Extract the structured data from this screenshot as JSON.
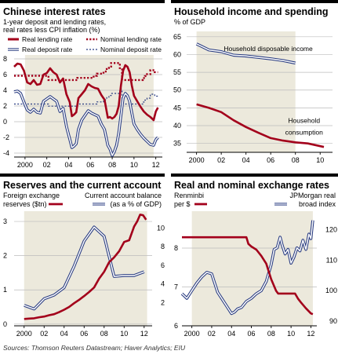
{
  "colors": {
    "red": "#a3001b",
    "blue": "#273a80",
    "grid": "#bcbcbc",
    "shade": "#ece9dc",
    "topbar": "#000000"
  },
  "source_text": "Sources: Thomson Reuters Datastream; Haver Analytics; EIU",
  "chart_data": [
    {
      "id": "interest",
      "type": "line",
      "title": "Chinese interest rates",
      "subtitle": "1-year deposit and lending rates,",
      "subtitle2": "real rates less CPI inflation (%)",
      "legend": [
        {
          "name": "Real lending rate",
          "color": "#a3001b",
          "style": "solid"
        },
        {
          "name": "Nominal lending rate",
          "color": "#a3001b",
          "style": "dotted"
        },
        {
          "name": "Real deposit rate",
          "color": "#273a80",
          "style": "outline"
        },
        {
          "name": "Nominal deposit rate",
          "color": "#273a80",
          "style": "dotted-circle"
        }
      ],
      "ylim": [
        -4.5,
        8.5
      ],
      "yticks": [
        "8",
        "6",
        "4",
        "2",
        "0",
        "-2",
        "-4"
      ],
      "ytick_values": [
        8,
        6,
        4,
        2,
        0,
        -2,
        -4
      ],
      "xlim": [
        1999.0,
        2012.6
      ],
      "xticks": [
        "2000",
        "02",
        "04",
        "06",
        "08",
        "10",
        "12"
      ],
      "xtick_values": [
        2000,
        2002,
        2004,
        2006,
        2008,
        2010,
        2012
      ],
      "shade_x": [
        2000.0,
        2011.8
      ],
      "series": [
        {
          "name": "Nominal lending rate",
          "style": "dotted",
          "color": "#a3001b",
          "x": [
            1999.0,
            2002.15,
            2002.15,
            2004.8,
            2004.8,
            2006.3,
            2006.3,
            2006.6,
            2006.6,
            2007.2,
            2007.2,
            2007.5,
            2007.5,
            2007.7,
            2007.7,
            2007.9,
            2007.9,
            2008.7,
            2008.7,
            2008.9,
            2008.9,
            2010.8,
            2010.8,
            2011.0,
            2011.0,
            2011.2,
            2011.2,
            2011.5,
            2011.5,
            2011.9,
            2011.9,
            2012.2
          ],
          "y": [
            5.85,
            5.85,
            5.31,
            5.31,
            5.58,
            5.58,
            5.85,
            5.85,
            6.12,
            6.12,
            6.39,
            6.39,
            6.84,
            6.84,
            7.02,
            7.02,
            7.47,
            7.47,
            6.66,
            6.66,
            5.31,
            5.31,
            5.56,
            5.56,
            5.81,
            5.81,
            6.06,
            6.06,
            6.56,
            6.56,
            6.31,
            6.31
          ]
        },
        {
          "name": "Nominal deposit rate",
          "style": "dotted-circle",
          "color": "#273a80",
          "x": [
            1999.0,
            2002.15,
            2002.15,
            2004.8,
            2004.8,
            2006.6,
            2006.6,
            2007.2,
            2007.2,
            2007.5,
            2007.5,
            2007.7,
            2007.7,
            2007.9,
            2007.9,
            2008.7,
            2008.7,
            2008.9,
            2008.9,
            2010.8,
            2010.8,
            2011.0,
            2011.0,
            2011.2,
            2011.2,
            2011.5,
            2011.5,
            2011.9,
            2011.9,
            2012.2
          ],
          "y": [
            2.25,
            2.25,
            1.98,
            1.98,
            2.25,
            2.25,
            2.52,
            2.52,
            2.79,
            2.79,
            3.06,
            3.06,
            3.33,
            3.33,
            3.6,
            3.6,
            4.14,
            4.14,
            2.25,
            2.25,
            2.5,
            2.5,
            2.75,
            2.75,
            3.0,
            3.0,
            3.5,
            3.5,
            3.25,
            3.25
          ]
        },
        {
          "name": "Real lending rate",
          "style": "solid",
          "color": "#a3001b",
          "x": [
            1999.0,
            1999.3,
            1999.6,
            1999.9,
            2000.2,
            2000.5,
            2000.8,
            2001.1,
            2001.4,
            2001.7,
            2002.0,
            2002.3,
            2002.6,
            2002.9,
            2003.2,
            2003.5,
            2003.8,
            2004.1,
            2004.3,
            2004.5,
            2004.7,
            2004.9,
            2005.2,
            2005.5,
            2005.8,
            2006.1,
            2006.4,
            2006.7,
            2007.0,
            2007.3,
            2007.6,
            2007.8,
            2008.0,
            2008.2,
            2008.4,
            2008.6,
            2008.8,
            2009.0,
            2009.2,
            2009.4,
            2009.6,
            2009.8,
            2010.0,
            2010.3,
            2010.6,
            2010.9,
            2011.2,
            2011.5,
            2011.8,
            2012.0,
            2012.2
          ],
          "y": [
            7.0,
            7.4,
            7.3,
            6.5,
            5.0,
            4.8,
            5.3,
            4.7,
            4.8,
            6.0,
            6.2,
            6.8,
            6.3,
            6.0,
            5.0,
            5.5,
            3.5,
            2.5,
            0.7,
            0.9,
            1.2,
            3.0,
            3.5,
            4.0,
            4.8,
            4.5,
            4.3,
            4.2,
            3.4,
            2.8,
            0.5,
            0.6,
            0.4,
            0.6,
            1.0,
            2.0,
            4.6,
            6.5,
            7.2,
            7.0,
            6.3,
            4.6,
            3.3,
            2.6,
            1.9,
            1.3,
            0.9,
            0.6,
            0.2,
            1.3,
            1.8
          ]
        },
        {
          "name": "Real deposit rate",
          "style": "outline",
          "color": "#273a80",
          "x": [
            1999.0,
            1999.3,
            1999.6,
            1999.9,
            2000.2,
            2000.5,
            2000.8,
            2001.1,
            2001.4,
            2001.7,
            2002.0,
            2002.3,
            2002.6,
            2002.9,
            2003.2,
            2003.5,
            2003.8,
            2004.1,
            2004.3,
            2004.5,
            2004.7,
            2004.9,
            2005.2,
            2005.5,
            2005.8,
            2006.1,
            2006.4,
            2006.7,
            2007.0,
            2007.3,
            2007.6,
            2007.8,
            2008.0,
            2008.2,
            2008.4,
            2008.6,
            2008.8,
            2009.0,
            2009.2,
            2009.4,
            2009.6,
            2009.8,
            2010.0,
            2010.3,
            2010.6,
            2010.9,
            2011.2,
            2011.5,
            2011.8,
            2012.0,
            2012.2
          ],
          "y": [
            3.8,
            3.9,
            3.6,
            2.5,
            1.5,
            1.2,
            1.6,
            1.2,
            1.1,
            2.6,
            2.9,
            3.2,
            2.9,
            2.6,
            1.3,
            1.7,
            -0.6,
            -2.2,
            -3.3,
            -3.1,
            -2.8,
            -1.0,
            0.2,
            0.8,
            1.4,
            1.1,
            0.9,
            0.7,
            -0.3,
            -1.0,
            -3.0,
            -3.5,
            -4.3,
            -3.8,
            -3.0,
            -1.5,
            0.8,
            3.0,
            3.6,
            3.3,
            2.6,
            1.1,
            -0.3,
            -1.0,
            -1.6,
            -2.1,
            -2.5,
            -2.9,
            -3.0,
            -2.3,
            -2.0
          ]
        }
      ]
    },
    {
      "id": "household",
      "type": "line",
      "title": "Household income and spending",
      "subtitle": "% of GDP",
      "ylim": [
        32.5,
        66.5
      ],
      "yticks": [
        "65",
        "60",
        "55",
        "50",
        "45",
        "40",
        "35"
      ],
      "ytick_values": [
        65,
        60,
        55,
        50,
        45,
        40,
        35
      ],
      "xlim": [
        1999.2,
        2011.0
      ],
      "xticks": [
        "2000",
        "02",
        "04",
        "06",
        "08",
        "10"
      ],
      "xtick_values": [
        2000,
        2002,
        2004,
        2006,
        2008,
        2010
      ],
      "shade_x": [
        2000.0,
        2008.0
      ],
      "series": [
        {
          "name": "Household disposable income",
          "style": "outline",
          "color": "#273a80",
          "x": [
            2000,
            2001,
            2002,
            2003,
            2004,
            2005,
            2006,
            2007,
            2008
          ],
          "y": [
            63.0,
            61.3,
            60.8,
            59.8,
            59.6,
            59.2,
            58.8,
            58.3,
            57.6
          ]
        },
        {
          "name": "Household consumption",
          "style": "solid",
          "color": "#a3001b",
          "x": [
            2000,
            2001,
            2002,
            2003,
            2004,
            2005,
            2006,
            2007,
            2008,
            2009,
            2010.3
          ],
          "y": [
            46.0,
            45.0,
            43.8,
            41.5,
            39.6,
            38.0,
            36.5,
            35.8,
            35.3,
            35.0,
            34.0
          ]
        }
      ],
      "annotations": [
        {
          "text": "Household disposable income",
          "x": 2005.8,
          "y": 61.0
        },
        {
          "text": "Household",
          "x": 2008.7,
          "y": 40.8
        },
        {
          "text": "consumption",
          "x": 2008.7,
          "y": 37.5
        }
      ]
    },
    {
      "id": "reserves",
      "type": "line",
      "title": "Reserves and the current account",
      "left_label_1": "Foreign exchange",
      "left_label_2": "reserves ($tn)",
      "right_label_1": "Current account balance",
      "right_label_2": "(as a % of GDP)",
      "ylim_left": [
        -0.05,
        3.3
      ],
      "ylim_right": [
        -0.5,
        11.8
      ],
      "yticks_left": [
        "3",
        "2",
        "1",
        "0"
      ],
      "ytick_values_left": [
        3,
        2,
        1,
        0
      ],
      "yticks_right": [
        "10",
        "8",
        "6",
        "4",
        "2"
      ],
      "ytick_values_right": [
        10,
        8,
        6,
        4,
        2
      ],
      "xlim": [
        1999.0,
        2012.8
      ],
      "xticks": [
        "2000",
        "02",
        "04",
        "06",
        "08",
        "10",
        "12"
      ],
      "xtick_values": [
        2000,
        2002,
        2004,
        2006,
        2008,
        2010,
        2012
      ],
      "shade_x": [
        2000.0,
        2012.3
      ],
      "series": [
        {
          "name": "Current account balance",
          "style": "outline",
          "color": "#273a80",
          "x": [
            2000,
            2001,
            2002,
            2003,
            2004,
            2005,
            2006,
            2007,
            2008,
            2009,
            2010,
            2011,
            2012
          ],
          "y": [
            1.7,
            1.3,
            2.4,
            2.8,
            3.6,
            5.9,
            8.6,
            10.1,
            9.1,
            4.8,
            4.9,
            4.9,
            5.3
          ]
        },
        {
          "name": "Foreign exchange reserves",
          "style": "solid",
          "color": "#a3001b",
          "x": [
            2000.0,
            2000.5,
            2001.0,
            2001.5,
            2002.0,
            2002.5,
            2003.0,
            2003.5,
            2004.0,
            2004.5,
            2005.0,
            2005.5,
            2006.0,
            2006.5,
            2007.0,
            2007.5,
            2008.0,
            2008.5,
            2009.0,
            2009.5,
            2010.0,
            2010.5,
            2011.0,
            2011.3,
            2011.6,
            2011.9,
            2012.2
          ],
          "y": [
            0.15,
            0.16,
            0.17,
            0.2,
            0.22,
            0.26,
            0.29,
            0.35,
            0.42,
            0.5,
            0.61,
            0.71,
            0.82,
            0.94,
            1.07,
            1.33,
            1.53,
            1.81,
            1.95,
            2.13,
            2.4,
            2.45,
            2.85,
            3.0,
            3.2,
            3.18,
            3.05
          ]
        }
      ]
    },
    {
      "id": "exchange",
      "type": "line",
      "title": "Real and nominal exchange rates",
      "left_label_1": "Renminbi",
      "left_label_2": "per $",
      "right_label_1": "JPMorgan real",
      "right_label_2": "broad index",
      "ylim_left": [
        6.0,
        8.95
      ],
      "ylim_right": [
        88.5,
        126.0
      ],
      "yticks_left": [
        "6",
        "7",
        "8"
      ],
      "ytick_values_left": [
        6,
        7,
        8
      ],
      "yticks_right": [
        "120",
        "110",
        "100",
        "90"
      ],
      "ytick_values_right": [
        120,
        110,
        100,
        90
      ],
      "xlim": [
        1999.0,
        2012.6
      ],
      "xticks": [
        "2000",
        "02",
        "04",
        "06",
        "08",
        "10",
        "12"
      ],
      "xtick_values": [
        2000,
        2002,
        2004,
        2006,
        2008,
        2010,
        2012
      ],
      "shade_x": [
        2000.0,
        2012.2
      ],
      "series": [
        {
          "name": "JPMorgan real broad index",
          "style": "outline",
          "color": "#273a80",
          "x": [
            1999.0,
            1999.5,
            2000.0,
            2000.5,
            2001.0,
            2001.5,
            2002.0,
            2002.3,
            2002.6,
            2003.0,
            2003.5,
            2004.0,
            2004.3,
            2004.6,
            2005.0,
            2005.5,
            2006.0,
            2006.5,
            2007.0,
            2007.5,
            2008.0,
            2008.3,
            2008.6,
            2008.9,
            2009.1,
            2009.4,
            2009.7,
            2010.0,
            2010.3,
            2010.6,
            2010.9,
            2011.2,
            2011.5,
            2011.8,
            2012.0,
            2012.2
          ],
          "y": [
            99.0,
            97.5,
            100.0,
            102.5,
            104.5,
            106.0,
            105.5,
            102.5,
            99.5,
            97.5,
            95.0,
            92.5,
            93.0,
            94.0,
            94.5,
            96.5,
            97.5,
            99.0,
            100.0,
            103.0,
            108.5,
            113.5,
            114.0,
            117.5,
            115.0,
            112.0,
            113.5,
            109.0,
            111.0,
            114.0,
            113.0,
            116.5,
            113.5,
            118.5,
            117.0,
            123.0
          ]
        },
        {
          "name": "Renminbi per $",
          "style": "solid",
          "color": "#a3001b",
          "x": [
            1999.0,
            2005.5,
            2005.7,
            2006.0,
            2006.5,
            2007.0,
            2007.5,
            2008.0,
            2008.5,
            2008.7,
            2010.4,
            2010.7,
            2011.0,
            2011.5,
            2012.0,
            2012.2
          ],
          "y": [
            8.28,
            8.28,
            8.11,
            8.04,
            7.96,
            7.8,
            7.6,
            7.2,
            6.9,
            6.83,
            6.83,
            6.7,
            6.6,
            6.45,
            6.32,
            6.3
          ]
        }
      ]
    }
  ]
}
